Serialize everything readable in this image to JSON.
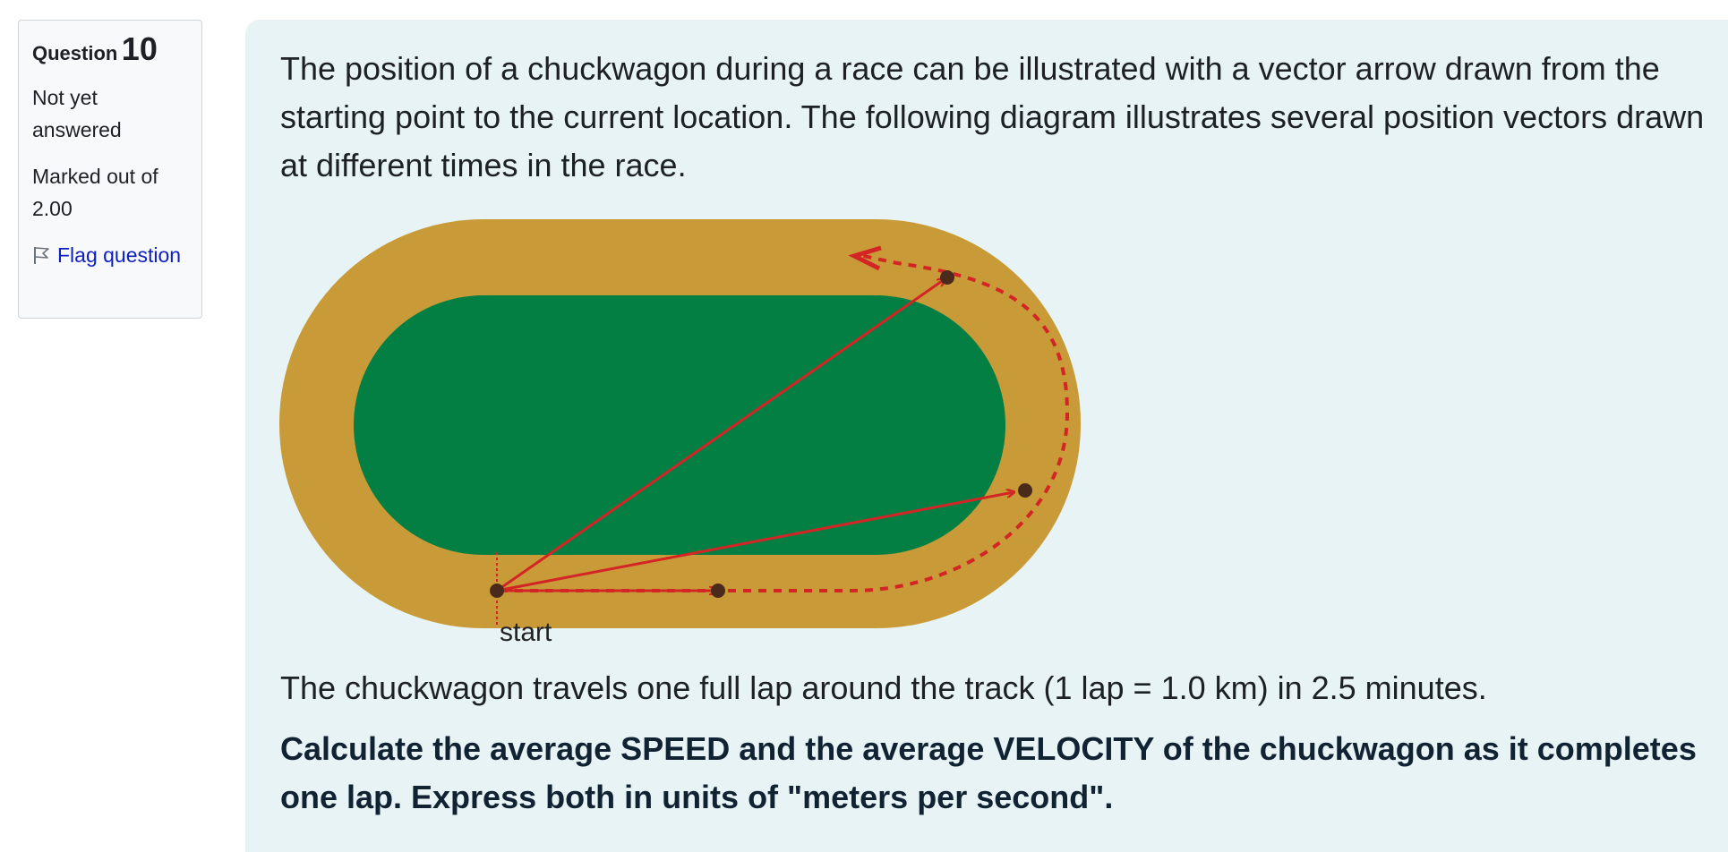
{
  "info": {
    "question_label": "Question",
    "question_number": "10",
    "state": "Not yet answered",
    "grade": "Marked out of 2.00",
    "flag_label": "Flag question"
  },
  "question": {
    "intro": "The position of a chuckwagon during a race can be illustrated with a vector arrow drawn from the starting point to the current location. The following diagram illustrates several position vectors drawn at different times in the race.",
    "diagram_label": "start",
    "lap_info": "The chuckwagon travels one full lap around the track (1 lap = 1.0 km) in 2.5 minutes.",
    "task": "Calculate the average SPEED and the average VELOCITY of the chuckwagon as it completes one lap.  Express both in units of \"meters per second\"."
  },
  "colors": {
    "track": "#c99a38",
    "infield": "#047f44",
    "arrow": "#d32525",
    "panel": "#e7f3f5",
    "link": "#0f1fbf"
  }
}
